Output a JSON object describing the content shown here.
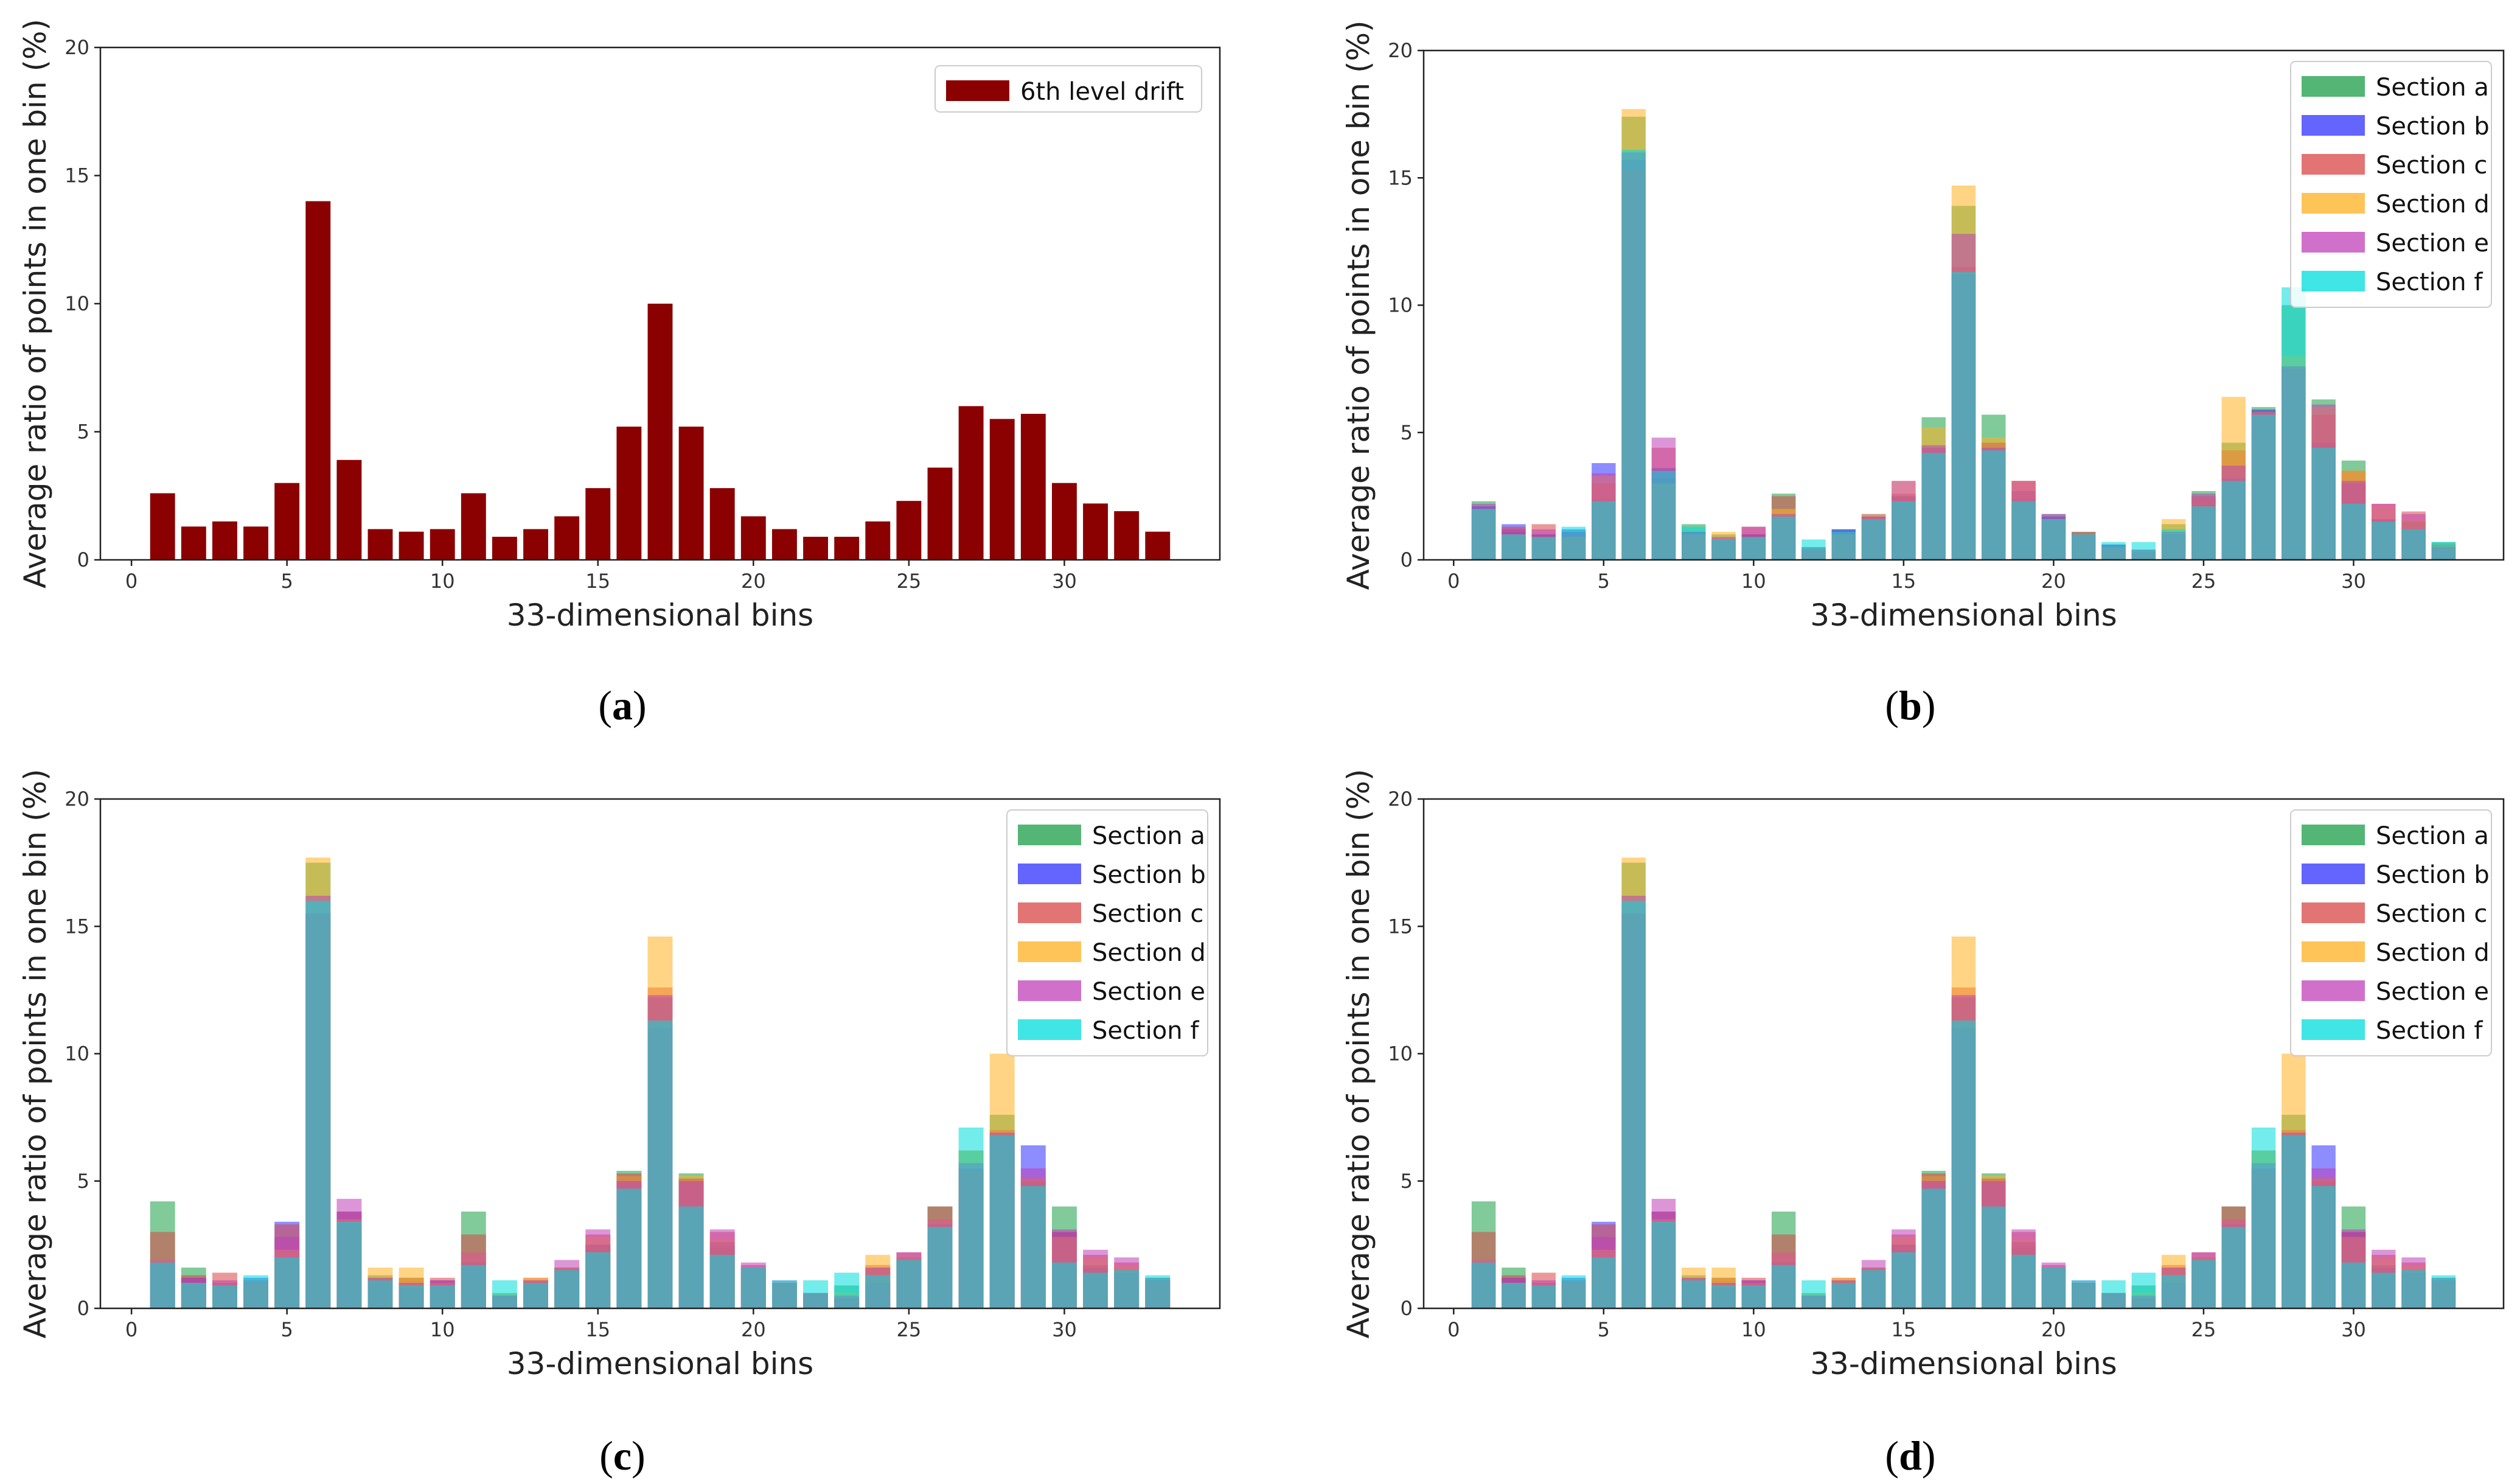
{
  "panels": [
    {
      "label_open": "(",
      "label_letter": "a",
      "label_close": ")"
    },
    {
      "label_open": "(",
      "label_letter": "b",
      "label_close": ")"
    },
    {
      "label_open": "(",
      "label_letter": "c",
      "label_close": ")"
    },
    {
      "label_open": "(",
      "label_letter": "d",
      "label_close": ")"
    }
  ],
  "chart_data": [
    {
      "type": "bar",
      "xlabel": "33-dimensional bins",
      "ylabel": "Average ratio of points in one bin (%)",
      "xlim": [
        -1,
        35
      ],
      "ylim": [
        0,
        20
      ],
      "xticks": [
        0,
        5,
        10,
        15,
        20,
        25,
        30
      ],
      "yticks": [
        0,
        5,
        10,
        15,
        20
      ],
      "grid": false,
      "legend": "top-right",
      "x": [
        1,
        2,
        3,
        4,
        5,
        6,
        7,
        8,
        9,
        10,
        11,
        12,
        13,
        14,
        15,
        16,
        17,
        18,
        19,
        20,
        21,
        22,
        23,
        24,
        25,
        26,
        27,
        28,
        29,
        30,
        31,
        32,
        33
      ],
      "series": [
        {
          "name": "6th level drift",
          "color": "#8b0000",
          "values": [
            2.6,
            1.3,
            1.5,
            1.3,
            3.0,
            14.0,
            3.9,
            1.2,
            1.1,
            1.2,
            2.6,
            0.9,
            1.2,
            1.7,
            2.8,
            5.2,
            10.0,
            5.2,
            2.8,
            1.7,
            1.2,
            0.9,
            0.9,
            1.5,
            2.3,
            3.6,
            6.0,
            5.5,
            5.7,
            3.0,
            2.2,
            1.9,
            1.1
          ]
        }
      ]
    },
    {
      "type": "bar",
      "xlabel": "33-dimensional bins",
      "ylabel": "Average ratio of points in one bin (%)",
      "xlim": [
        -1,
        35
      ],
      "ylim": [
        0,
        20
      ],
      "xticks": [
        0,
        5,
        10,
        15,
        20,
        25,
        30
      ],
      "yticks": [
        0,
        5,
        10,
        15,
        20
      ],
      "grid": false,
      "legend": "top-right",
      "x": [
        1,
        2,
        3,
        4,
        5,
        6,
        7,
        8,
        9,
        10,
        11,
        12,
        13,
        14,
        15,
        16,
        17,
        18,
        19,
        20,
        21,
        22,
        23,
        24,
        25,
        26,
        27,
        28,
        29,
        30,
        31,
        32,
        33
      ],
      "series": [
        {
          "name": "Section a",
          "color": "#1a9e46",
          "values": [
            2.3,
            1.1,
            1.0,
            1.1,
            2.4,
            17.4,
            3.2,
            1.4,
            1.0,
            1.0,
            2.6,
            0.5,
            1.2,
            1.7,
            2.5,
            5.6,
            13.9,
            5.7,
            2.4,
            1.8,
            1.1,
            0.6,
            0.3,
            1.4,
            2.7,
            4.6,
            6.0,
            10.0,
            6.3,
            3.9,
            1.6,
            1.5,
            0.7
          ]
        },
        {
          "name": "Section b",
          "color": "#3030ff",
          "values": [
            2.1,
            1.4,
            1.0,
            1.2,
            3.8,
            15.7,
            3.6,
            1.1,
            0.8,
            1.0,
            1.7,
            0.4,
            1.2,
            1.8,
            2.5,
            4.4,
            11.2,
            4.6,
            2.7,
            1.7,
            1.0,
            0.6,
            0.4,
            1.0,
            2.5,
            3.2,
            5.9,
            7.5,
            4.6,
            3.0,
            1.6,
            1.2,
            0.6
          ]
        },
        {
          "name": "Section c",
          "color": "#d94545",
          "values": [
            2.0,
            1.3,
            1.4,
            1.0,
            3.0,
            15.3,
            4.4,
            1.1,
            0.8,
            1.3,
            2.5,
            0.4,
            1.0,
            1.7,
            2.6,
            4.3,
            11.5,
            4.6,
            3.1,
            1.6,
            1.1,
            0.5,
            0.3,
            1.1,
            2.4,
            4.3,
            5.8,
            7.6,
            5.7,
            3.5,
            2.2,
            1.9,
            0.6
          ]
        },
        {
          "name": "Section d",
          "color": "#ffb020",
          "values": [
            2.0,
            1.0,
            0.9,
            0.9,
            3.3,
            17.7,
            3.0,
            1.0,
            1.1,
            0.9,
            2.0,
            0.4,
            1.0,
            1.8,
            3.1,
            5.2,
            14.7,
            4.8,
            3.1,
            1.6,
            1.0,
            0.5,
            0.4,
            1.6,
            2.5,
            6.4,
            5.8,
            8.0,
            6.0,
            3.5,
            2.1,
            1.6,
            0.6
          ]
        },
        {
          "name": "Section e",
          "color": "#c040b8",
          "values": [
            2.2,
            1.2,
            1.2,
            1.1,
            3.4,
            16.0,
            4.8,
            1.1,
            0.9,
            1.3,
            1.8,
            0.5,
            1.1,
            1.7,
            3.1,
            4.5,
            12.8,
            4.4,
            3.1,
            1.8,
            1.0,
            0.6,
            0.4,
            1.1,
            2.6,
            3.7,
            5.8,
            7.6,
            6.1,
            3.1,
            2.2,
            1.8,
            0.5
          ]
        },
        {
          "name": "Section f",
          "color": "#00dcdc",
          "values": [
            2.0,
            1.0,
            0.9,
            1.3,
            2.3,
            16.1,
            3.5,
            1.3,
            0.8,
            0.9,
            1.7,
            0.8,
            1.1,
            1.6,
            2.3,
            4.2,
            11.3,
            4.3,
            2.3,
            1.6,
            1.0,
            0.7,
            0.7,
            1.2,
            2.1,
            3.1,
            5.7,
            10.7,
            4.4,
            2.2,
            1.5,
            1.2,
            0.7
          ]
        }
      ]
    },
    {
      "type": "bar",
      "xlabel": "33-dimensional bins",
      "ylabel": "Average ratio of points in one bin (%)",
      "xlim": [
        -1,
        35
      ],
      "ylim": [
        0,
        20
      ],
      "xticks": [
        0,
        5,
        10,
        15,
        20,
        25,
        30
      ],
      "yticks": [
        0,
        5,
        10,
        15,
        20
      ],
      "grid": false,
      "legend": "top-right",
      "x": [
        1,
        2,
        3,
        4,
        5,
        6,
        7,
        8,
        9,
        10,
        11,
        12,
        13,
        14,
        15,
        16,
        17,
        18,
        19,
        20,
        21,
        22,
        23,
        24,
        25,
        26,
        27,
        28,
        29,
        30,
        31,
        32,
        33
      ],
      "series": [
        {
          "name": "Section a",
          "color": "#1a9e46",
          "values": [
            4.2,
            1.6,
            1.0,
            1.0,
            2.0,
            17.5,
            3.3,
            1.3,
            1.2,
            1.0,
            3.8,
            0.6,
            1.1,
            1.6,
            2.5,
            5.4,
            12.2,
            5.3,
            2.4,
            1.6,
            1.0,
            0.6,
            0.9,
            1.6,
            2.0,
            4.0,
            6.2,
            7.6,
            5.0,
            4.0,
            1.7,
            1.5,
            1.2
          ]
        },
        {
          "name": "Section b",
          "color": "#3030ff",
          "values": [
            1.8,
            1.2,
            1.0,
            1.2,
            3.4,
            15.5,
            3.8,
            1.1,
            0.8,
            1.1,
            1.8,
            0.5,
            1.0,
            1.5,
            2.5,
            5.2,
            11.0,
            5.1,
            2.6,
            1.6,
            1.0,
            0.6,
            0.4,
            1.0,
            1.9,
            3.3,
            5.5,
            6.8,
            6.4,
            3.0,
            1.6,
            1.4,
            1.1
          ]
        },
        {
          "name": "Section c",
          "color": "#d94545",
          "values": [
            3.0,
            1.3,
            1.4,
            1.1,
            3.3,
            15.5,
            3.8,
            1.2,
            1.2,
            1.2,
            2.9,
            0.5,
            1.2,
            1.6,
            2.9,
            5.3,
            12.6,
            5.1,
            3.0,
            1.7,
            1.0,
            0.6,
            0.4,
            1.7,
            2.2,
            4.0,
            5.4,
            7.0,
            5.1,
            3.0,
            2.1,
            1.8,
            1.1
          ]
        },
        {
          "name": "Section d",
          "color": "#ffb020",
          "values": [
            1.9,
            1.0,
            1.0,
            1.0,
            2.3,
            17.7,
            3.5,
            1.6,
            1.6,
            1.0,
            2.2,
            0.6,
            1.2,
            1.6,
            2.8,
            5.2,
            14.6,
            5.2,
            2.7,
            1.6,
            1.0,
            0.6,
            0.6,
            2.1,
            2.0,
            3.5,
            6.2,
            10.0,
            5.1,
            2.8,
            2.0,
            1.7,
            1.1
          ]
        },
        {
          "name": "Section e",
          "color": "#c040b8",
          "values": [
            1.9,
            1.2,
            1.1,
            1.0,
            2.8,
            16.2,
            4.3,
            1.2,
            1.0,
            1.1,
            2.2,
            0.5,
            1.1,
            1.9,
            3.1,
            5.0,
            12.3,
            5.0,
            3.1,
            1.8,
            1.1,
            0.6,
            0.5,
            1.6,
            2.2,
            3.5,
            5.7,
            6.9,
            5.5,
            3.1,
            2.3,
            2.0,
            1.2
          ]
        },
        {
          "name": "Section f",
          "color": "#00dcdc",
          "values": [
            1.8,
            1.0,
            0.9,
            1.3,
            2.0,
            16.0,
            3.4,
            1.1,
            0.9,
            0.9,
            1.7,
            1.1,
            1.0,
            1.5,
            2.2,
            4.7,
            11.3,
            4.0,
            2.1,
            1.6,
            1.1,
            1.1,
            1.4,
            1.3,
            1.9,
            3.2,
            7.1,
            6.8,
            4.8,
            1.8,
            1.4,
            1.5,
            1.3
          ]
        }
      ]
    },
    {
      "type": "bar",
      "xlabel": "33-dimensional bins",
      "ylabel": "Average ratio of points in one bin (%)",
      "xlim": [
        -1,
        35
      ],
      "ylim": [
        0,
        20
      ],
      "xticks": [
        0,
        5,
        10,
        15,
        20,
        25,
        30
      ],
      "yticks": [
        0,
        5,
        10,
        15,
        20
      ],
      "grid": false,
      "legend": "top-right",
      "x": [
        1,
        2,
        3,
        4,
        5,
        6,
        7,
        8,
        9,
        10,
        11,
        12,
        13,
        14,
        15,
        16,
        17,
        18,
        19,
        20,
        21,
        22,
        23,
        24,
        25,
        26,
        27,
        28,
        29,
        30,
        31,
        32,
        33
      ],
      "series": [
        {
          "name": "Section a",
          "color": "#1a9e46",
          "values": [
            4.2,
            1.6,
            1.0,
            1.0,
            2.0,
            17.5,
            3.3,
            1.3,
            1.2,
            1.0,
            3.8,
            0.6,
            1.1,
            1.6,
            2.5,
            5.4,
            12.2,
            5.3,
            2.4,
            1.6,
            1.0,
            0.6,
            0.9,
            1.6,
            2.0,
            4.0,
            6.2,
            7.6,
            5.0,
            4.0,
            1.7,
            1.5,
            1.2
          ]
        },
        {
          "name": "Section b",
          "color": "#3030ff",
          "values": [
            1.8,
            1.2,
            1.0,
            1.2,
            3.4,
            15.5,
            3.8,
            1.1,
            0.8,
            1.1,
            1.8,
            0.5,
            1.0,
            1.5,
            2.5,
            5.2,
            11.0,
            5.1,
            2.6,
            1.6,
            1.0,
            0.6,
            0.4,
            1.0,
            1.9,
            3.3,
            5.5,
            6.8,
            6.4,
            3.0,
            1.6,
            1.4,
            1.1
          ]
        },
        {
          "name": "Section c",
          "color": "#d94545",
          "values": [
            3.0,
            1.3,
            1.4,
            1.1,
            3.3,
            15.5,
            3.8,
            1.2,
            1.2,
            1.2,
            2.9,
            0.5,
            1.2,
            1.6,
            2.9,
            5.3,
            12.6,
            5.1,
            3.0,
            1.7,
            1.0,
            0.6,
            0.4,
            1.7,
            2.2,
            4.0,
            5.4,
            7.0,
            5.1,
            3.0,
            2.1,
            1.8,
            1.1
          ]
        },
        {
          "name": "Section d",
          "color": "#ffb020",
          "values": [
            1.9,
            1.0,
            1.0,
            1.0,
            2.3,
            17.7,
            3.5,
            1.6,
            1.6,
            1.0,
            2.2,
            0.6,
            1.2,
            1.6,
            2.8,
            5.2,
            14.6,
            5.2,
            2.7,
            1.6,
            1.0,
            0.6,
            0.6,
            2.1,
            2.0,
            3.5,
            6.2,
            10.0,
            5.1,
            2.8,
            2.0,
            1.7,
            1.1
          ]
        },
        {
          "name": "Section e",
          "color": "#c040b8",
          "values": [
            1.9,
            1.2,
            1.1,
            1.0,
            2.8,
            16.2,
            4.3,
            1.2,
            1.0,
            1.1,
            2.2,
            0.5,
            1.1,
            1.9,
            3.1,
            5.0,
            12.3,
            5.0,
            3.1,
            1.8,
            1.1,
            0.6,
            0.5,
            1.6,
            2.2,
            3.5,
            5.7,
            6.9,
            5.5,
            3.1,
            2.3,
            2.0,
            1.2
          ]
        },
        {
          "name": "Section f",
          "color": "#00dcdc",
          "values": [
            1.8,
            1.0,
            0.9,
            1.3,
            2.0,
            16.0,
            3.4,
            1.1,
            0.9,
            0.9,
            1.7,
            1.1,
            1.0,
            1.5,
            2.2,
            4.7,
            11.3,
            4.0,
            2.1,
            1.6,
            1.1,
            1.1,
            1.4,
            1.3,
            1.9,
            3.2,
            7.1,
            6.8,
            4.8,
            1.8,
            1.4,
            1.5,
            1.3
          ]
        }
      ]
    }
  ]
}
